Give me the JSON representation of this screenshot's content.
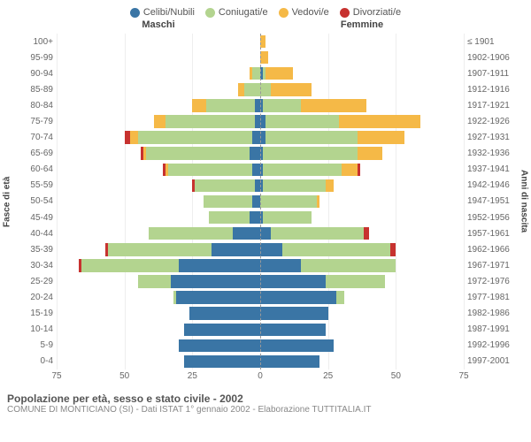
{
  "type": "population-pyramid",
  "colors": {
    "single": "#3a75a5",
    "married": "#b3d48f",
    "widowed": "#f5b947",
    "divorced": "#c7322f",
    "grid": "#eeeeee",
    "centerline": "#999999",
    "text": "#666666",
    "bg": "#ffffff"
  },
  "legend": [
    {
      "label": "Celibi/Nubili",
      "colorKey": "single"
    },
    {
      "label": "Coniugati/e",
      "colorKey": "married"
    },
    {
      "label": "Vedovi/e",
      "colorKey": "widowed"
    },
    {
      "label": "Divorziati/e",
      "colorKey": "divorced"
    }
  ],
  "headers": {
    "male": "Maschi",
    "female": "Femmine"
  },
  "axis_left_title": "Fasce di età",
  "axis_right_title": "Anni di nascita",
  "xlim": 75,
  "xtick_step": 25,
  "xticks_left": [
    75,
    50,
    25,
    0
  ],
  "xticks_right": [
    25,
    50,
    75
  ],
  "age_labels": [
    "100+",
    "95-99",
    "90-94",
    "85-89",
    "80-84",
    "75-79",
    "70-74",
    "65-69",
    "60-64",
    "55-59",
    "50-54",
    "45-49",
    "40-44",
    "35-39",
    "30-34",
    "25-29",
    "20-24",
    "15-19",
    "10-14",
    "5-9",
    "0-4"
  ],
  "year_labels": [
    "≤ 1901",
    "1902-1906",
    "1907-1911",
    "1912-1916",
    "1917-1921",
    "1922-1926",
    "1927-1931",
    "1932-1936",
    "1937-1941",
    "1942-1946",
    "1947-1951",
    "1952-1956",
    "1957-1961",
    "1962-1966",
    "1967-1971",
    "1972-1976",
    "1977-1981",
    "1982-1986",
    "1987-1991",
    "1992-1996",
    "1997-2001"
  ],
  "rows": [
    {
      "m": {
        "s": 0,
        "c": 0,
        "w": 0,
        "d": 0
      },
      "f": {
        "s": 0,
        "c": 0,
        "w": 2,
        "d": 0
      }
    },
    {
      "m": {
        "s": 0,
        "c": 0,
        "w": 0,
        "d": 0
      },
      "f": {
        "s": 0,
        "c": 0,
        "w": 3,
        "d": 0
      }
    },
    {
      "m": {
        "s": 0,
        "c": 3,
        "w": 1,
        "d": 0
      },
      "f": {
        "s": 1,
        "c": 1,
        "w": 10,
        "d": 0
      }
    },
    {
      "m": {
        "s": 0,
        "c": 6,
        "w": 2,
        "d": 0
      },
      "f": {
        "s": 0,
        "c": 4,
        "w": 15,
        "d": 0
      }
    },
    {
      "m": {
        "s": 2,
        "c": 18,
        "w": 5,
        "d": 0
      },
      "f": {
        "s": 1,
        "c": 14,
        "w": 24,
        "d": 0
      }
    },
    {
      "m": {
        "s": 2,
        "c": 33,
        "w": 4,
        "d": 0
      },
      "f": {
        "s": 2,
        "c": 27,
        "w": 30,
        "d": 0
      }
    },
    {
      "m": {
        "s": 3,
        "c": 42,
        "w": 3,
        "d": 2
      },
      "f": {
        "s": 2,
        "c": 34,
        "w": 17,
        "d": 0
      }
    },
    {
      "m": {
        "s": 4,
        "c": 38,
        "w": 1,
        "d": 1
      },
      "f": {
        "s": 1,
        "c": 35,
        "w": 9,
        "d": 0
      }
    },
    {
      "m": {
        "s": 3,
        "c": 31,
        "w": 1,
        "d": 1
      },
      "f": {
        "s": 1,
        "c": 29,
        "w": 6,
        "d": 1
      }
    },
    {
      "m": {
        "s": 2,
        "c": 22,
        "w": 0,
        "d": 1
      },
      "f": {
        "s": 1,
        "c": 23,
        "w": 3,
        "d": 0
      }
    },
    {
      "m": {
        "s": 3,
        "c": 18,
        "w": 0,
        "d": 0
      },
      "f": {
        "s": 0,
        "c": 21,
        "w": 1,
        "d": 0
      }
    },
    {
      "m": {
        "s": 4,
        "c": 15,
        "w": 0,
        "d": 0
      },
      "f": {
        "s": 1,
        "c": 18,
        "w": 0,
        "d": 0
      }
    },
    {
      "m": {
        "s": 10,
        "c": 31,
        "w": 0,
        "d": 0
      },
      "f": {
        "s": 4,
        "c": 34,
        "w": 0,
        "d": 2
      }
    },
    {
      "m": {
        "s": 18,
        "c": 38,
        "w": 0,
        "d": 1
      },
      "f": {
        "s": 8,
        "c": 40,
        "w": 0,
        "d": 2
      }
    },
    {
      "m": {
        "s": 30,
        "c": 36,
        "w": 0,
        "d": 1
      },
      "f": {
        "s": 15,
        "c": 35,
        "w": 0,
        "d": 0
      }
    },
    {
      "m": {
        "s": 33,
        "c": 12,
        "w": 0,
        "d": 0
      },
      "f": {
        "s": 24,
        "c": 22,
        "w": 0,
        "d": 0
      }
    },
    {
      "m": {
        "s": 31,
        "c": 1,
        "w": 0,
        "d": 0
      },
      "f": {
        "s": 28,
        "c": 3,
        "w": 0,
        "d": 0
      }
    },
    {
      "m": {
        "s": 26,
        "c": 0,
        "w": 0,
        "d": 0
      },
      "f": {
        "s": 25,
        "c": 0,
        "w": 0,
        "d": 0
      }
    },
    {
      "m": {
        "s": 28,
        "c": 0,
        "w": 0,
        "d": 0
      },
      "f": {
        "s": 24,
        "c": 0,
        "w": 0,
        "d": 0
      }
    },
    {
      "m": {
        "s": 30,
        "c": 0,
        "w": 0,
        "d": 0
      },
      "f": {
        "s": 27,
        "c": 0,
        "w": 0,
        "d": 0
      }
    },
    {
      "m": {
        "s": 28,
        "c": 0,
        "w": 0,
        "d": 0
      },
      "f": {
        "s": 22,
        "c": 0,
        "w": 0,
        "d": 0
      }
    }
  ],
  "caption": "Popolazione per età, sesso e stato civile - 2002",
  "caption_sub": "COMUNE DI MONTICIANO (SI) - Dati ISTAT 1° gennaio 2002 - Elaborazione TUTTITALIA.IT",
  "bar_height_pct": 80,
  "fontsize_labels": 10,
  "fontsize_legend": 11
}
